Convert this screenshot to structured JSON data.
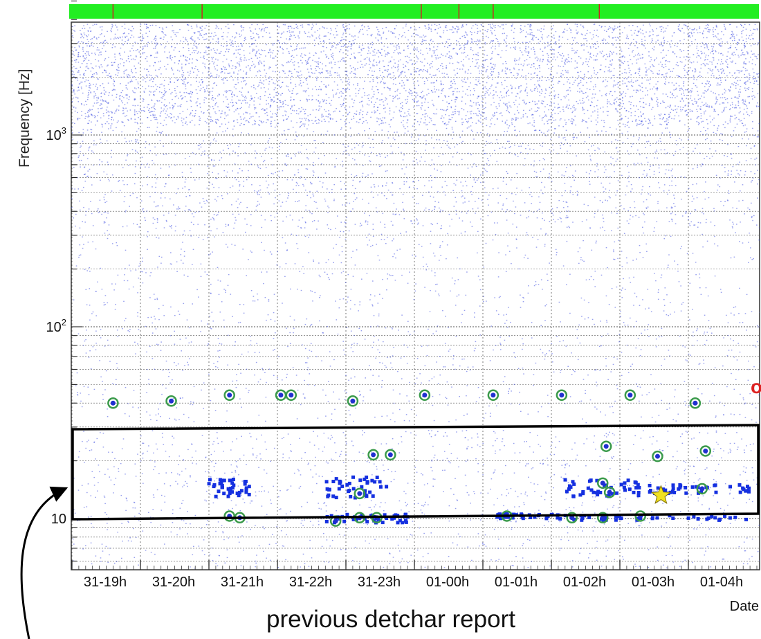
{
  "chart_data": {
    "type": "scatter",
    "ylabel": "Frequency [Hz]",
    "xlabel": "Date",
    "y_scale": "log",
    "ylim": [
      6,
      5000
    ],
    "y_ticks": [
      {
        "value": 10,
        "base": "10",
        "exp": ""
      },
      {
        "value": 100,
        "base": "10",
        "exp": "2"
      },
      {
        "value": 1000,
        "base": "10",
        "exp": "3"
      }
    ],
    "x_ticks": [
      "31-19h",
      "31-20h",
      "31-21h",
      "31-22h",
      "31-23h",
      "01-00h",
      "01-01h",
      "01-02h",
      "01-03h",
      "01-04h"
    ],
    "grid": true,
    "status_bar": {
      "color": "#22ee22",
      "marker_color": "#cc2222",
      "marker_times": [
        0.6,
        1.9,
        5.1,
        5.65,
        6.15,
        7.7
      ]
    },
    "series": [
      {
        "marker": "circled-dot",
        "color": "#2030d0",
        "ring_color": "#3a9a4a",
        "points": [
          [
            0.6,
            40
          ],
          [
            1.45,
            41
          ],
          [
            2.3,
            44
          ],
          [
            3.05,
            44
          ],
          [
            3.2,
            44
          ],
          [
            4.1,
            41
          ],
          [
            5.15,
            44
          ],
          [
            6.15,
            44
          ],
          [
            7.15,
            44
          ],
          [
            8.15,
            44
          ],
          [
            9.1,
            40
          ],
          [
            2.3,
            10.3
          ],
          [
            2.45,
            10.1
          ],
          [
            3.85,
            9.7
          ],
          [
            4.2,
            10.1
          ],
          [
            4.45,
            10.1
          ],
          [
            4.4,
            21.5
          ],
          [
            4.65,
            21.5
          ],
          [
            4.2,
            13.5
          ],
          [
            7.8,
            23.8
          ],
          [
            8.55,
            21.1
          ],
          [
            9.25,
            22.5
          ],
          [
            9.2,
            14.3
          ],
          [
            7.75,
            15.3
          ],
          [
            7.85,
            13.7
          ],
          [
            6.35,
            10.3
          ],
          [
            7.3,
            10.1
          ],
          [
            7.75,
            10.1
          ],
          [
            8.3,
            10.3
          ]
        ]
      },
      {
        "marker": "star",
        "color": "#f0e020",
        "points": [
          [
            8.6,
            13.2
          ]
        ]
      }
    ],
    "annotations": [
      {
        "text": "o",
        "color": "#dd2222"
      }
    ]
  },
  "caption": "previous detchar report"
}
